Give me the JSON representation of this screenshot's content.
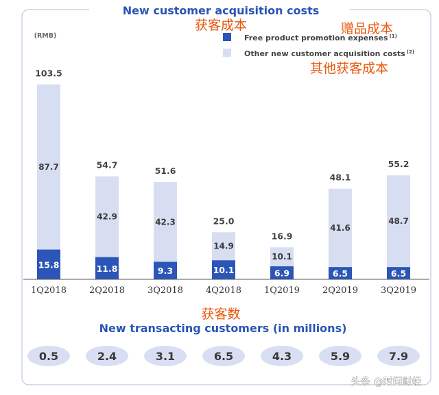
{
  "titles": {
    "top": "New customer acquisition costs",
    "top_cn": "获客成本",
    "bottom": "New transacting customers (in millions)",
    "bottom_cn": "获客数"
  },
  "unit": "(RMB)",
  "legend": {
    "free": {
      "label": "Free product promotion expenses",
      "sup": "(1)",
      "cn": "赠品成本"
    },
    "other": {
      "label": "Other new customer acquisition costs",
      "sup": "(2)",
      "cn": "其他获客成本"
    }
  },
  "colors": {
    "free": "#2c55b8",
    "other": "#d8def2",
    "pill": "#d9dff3",
    "title": "#2a54b4",
    "annotation": "#e8580e"
  },
  "watermark": "头条 @时间财经",
  "chart_data": [
    {
      "type": "bar",
      "stacked": true,
      "title": "New customer acquisition costs",
      "unit": "(RMB)",
      "categories": [
        "1Q2018",
        "2Q2018",
        "3Q2018",
        "4Q2018",
        "1Q2019",
        "2Q2019",
        "3Q2019"
      ],
      "series": [
        {
          "name": "Free product promotion expenses",
          "values": [
            15.8,
            11.8,
            9.3,
            10.1,
            6.9,
            6.5,
            6.5
          ]
        },
        {
          "name": "Other new customer acquisition costs",
          "values": [
            87.7,
            42.9,
            42.3,
            14.9,
            10.1,
            41.6,
            48.7
          ]
        }
      ],
      "totals": [
        103.5,
        54.7,
        51.6,
        25.0,
        16.9,
        48.1,
        55.2
      ],
      "legend_position": "top-right",
      "grid": false
    },
    {
      "type": "table",
      "title": "New transacting customers (in millions)",
      "categories": [
        "1Q2018",
        "2Q2018",
        "3Q2018",
        "4Q2018",
        "1Q2019",
        "2Q2019",
        "3Q2019"
      ],
      "values": [
        "0.5",
        "2.4",
        "3.1",
        "6.5",
        "4.3",
        "5.9",
        "7.9"
      ]
    }
  ]
}
